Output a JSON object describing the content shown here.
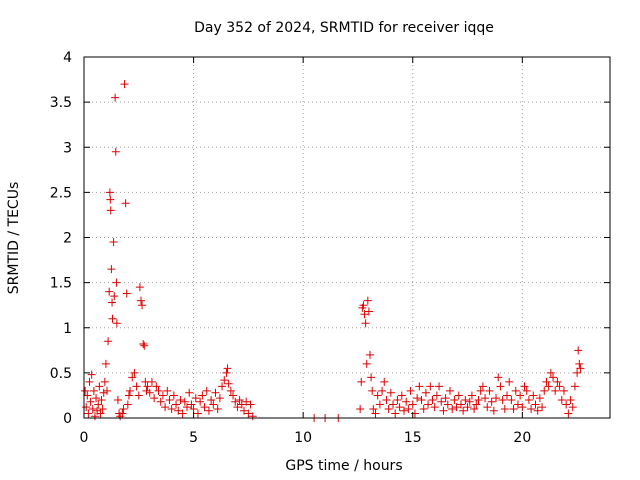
{
  "chart_data": {
    "type": "scatter",
    "title": "Day 352 of 2024, SRMTID for receiver iqqe",
    "xlabel": "GPS time / hours",
    "ylabel": "SRMTID / TECUs",
    "xlim": [
      0,
      24
    ],
    "ylim": [
      0,
      4
    ],
    "x_ticks": [
      0,
      5,
      10,
      15,
      20
    ],
    "x_tick_labels": [
      "0",
      "5",
      "10",
      "15",
      "20"
    ],
    "y_ticks": [
      0,
      0.5,
      1,
      1.5,
      2,
      2.5,
      3,
      3.5,
      4
    ],
    "y_tick_labels": [
      "0",
      "0.5",
      "1",
      "1.5",
      "2",
      "2.5",
      "3",
      "3.5",
      "4"
    ],
    "grid": true,
    "marker": "+",
    "marker_color": "#e00000",
    "series": [
      {
        "name": "SRMTID",
        "points": [
          [
            0.05,
            0.3
          ],
          [
            0.1,
            0.12
          ],
          [
            0.15,
            0.25
          ],
          [
            0.2,
            0.05
          ],
          [
            0.25,
            0.4
          ],
          [
            0.3,
            0.18
          ],
          [
            0.35,
            0.48
          ],
          [
            0.4,
            0.1
          ],
          [
            0.45,
            0.3
          ],
          [
            0.5,
            0.02
          ],
          [
            0.55,
            0.22
          ],
          [
            0.6,
            0.08
          ],
          [
            0.65,
            0.15
          ],
          [
            0.7,
            0.35
          ],
          [
            0.75,
            0.05
          ],
          [
            0.8,
            0.2
          ],
          [
            0.85,
            0.1
          ],
          [
            0.9,
            0.28
          ],
          [
            0.95,
            0.4
          ],
          [
            1.0,
            0.6
          ],
          [
            1.05,
            0.3
          ],
          [
            1.1,
            0.85
          ],
          [
            1.15,
            1.4
          ],
          [
            1.18,
            2.5
          ],
          [
            1.2,
            2.42
          ],
          [
            1.22,
            2.3
          ],
          [
            1.25,
            1.65
          ],
          [
            1.28,
            1.28
          ],
          [
            1.3,
            1.1
          ],
          [
            1.35,
            1.95
          ],
          [
            1.38,
            1.35
          ],
          [
            1.42,
            3.55
          ],
          [
            1.45,
            2.95
          ],
          [
            1.48,
            1.5
          ],
          [
            1.5,
            1.05
          ],
          [
            1.55,
            0.2
          ],
          [
            1.6,
            0.05
          ],
          [
            1.65,
            0.02
          ],
          [
            1.75,
            0.05
          ],
          [
            1.8,
            0.1
          ],
          [
            1.85,
            3.7
          ],
          [
            1.9,
            2.38
          ],
          [
            1.95,
            1.38
          ],
          [
            2.0,
            0.15
          ],
          [
            2.05,
            0.25
          ],
          [
            2.1,
            0.3
          ],
          [
            2.2,
            0.45
          ],
          [
            2.3,
            0.5
          ],
          [
            2.4,
            0.35
          ],
          [
            2.5,
            0.25
          ],
          [
            2.55,
            1.45
          ],
          [
            2.6,
            1.3
          ],
          [
            2.65,
            1.25
          ],
          [
            2.7,
            0.82
          ],
          [
            2.75,
            0.8
          ],
          [
            2.8,
            0.4
          ],
          [
            2.85,
            0.3
          ],
          [
            2.9,
            0.35
          ],
          [
            3.0,
            0.28
          ],
          [
            3.1,
            0.4
          ],
          [
            3.2,
            0.22
          ],
          [
            3.3,
            0.35
          ],
          [
            3.4,
            0.3
          ],
          [
            3.5,
            0.18
          ],
          [
            3.6,
            0.25
          ],
          [
            3.7,
            0.12
          ],
          [
            3.8,
            0.3
          ],
          [
            3.9,
            0.2
          ],
          [
            4.0,
            0.1
          ],
          [
            4.1,
            0.25
          ],
          [
            4.2,
            0.15
          ],
          [
            4.3,
            0.08
          ],
          [
            4.4,
            0.2
          ],
          [
            4.5,
            0.05
          ],
          [
            4.6,
            0.18
          ],
          [
            4.7,
            0.12
          ],
          [
            4.8,
            0.28
          ],
          [
            4.9,
            0.15
          ],
          [
            5.0,
            0.1
          ],
          [
            5.1,
            0.22
          ],
          [
            5.2,
            0.05
          ],
          [
            5.3,
            0.18
          ],
          [
            5.4,
            0.25
          ],
          [
            5.5,
            0.12
          ],
          [
            5.6,
            0.3
          ],
          [
            5.7,
            0.08
          ],
          [
            5.8,
            0.2
          ],
          [
            5.9,
            0.15
          ],
          [
            6.0,
            0.28
          ],
          [
            6.1,
            0.1
          ],
          [
            6.2,
            0.22
          ],
          [
            6.3,
            0.35
          ],
          [
            6.4,
            0.42
          ],
          [
            6.5,
            0.5
          ],
          [
            6.55,
            0.55
          ],
          [
            6.6,
            0.38
          ],
          [
            6.7,
            0.3
          ],
          [
            6.8,
            0.25
          ],
          [
            6.9,
            0.18
          ],
          [
            7.0,
            0.12
          ],
          [
            7.1,
            0.2
          ],
          [
            7.2,
            0.15
          ],
          [
            7.3,
            0.08
          ],
          [
            7.4,
            0.18
          ],
          [
            7.5,
            0.05
          ],
          [
            7.6,
            0.15
          ],
          [
            7.7,
            0.02
          ],
          [
            10.5,
            0.0
          ],
          [
            11.0,
            0.0
          ],
          [
            11.6,
            0.0
          ],
          [
            12.6,
            0.1
          ],
          [
            12.65,
            0.4
          ],
          [
            12.7,
            1.22
          ],
          [
            12.75,
            1.25
          ],
          [
            12.8,
            1.15
          ],
          [
            12.85,
            1.05
          ],
          [
            12.9,
            0.6
          ],
          [
            12.95,
            1.3
          ],
          [
            13.0,
            1.18
          ],
          [
            13.05,
            0.7
          ],
          [
            13.1,
            0.45
          ],
          [
            13.15,
            0.3
          ],
          [
            13.2,
            0.1
          ],
          [
            13.3,
            0.05
          ],
          [
            13.4,
            0.25
          ],
          [
            13.5,
            0.15
          ],
          [
            13.6,
            0.3
          ],
          [
            13.7,
            0.4
          ],
          [
            13.8,
            0.2
          ],
          [
            13.9,
            0.1
          ],
          [
            14.0,
            0.28
          ],
          [
            14.1,
            0.15
          ],
          [
            14.2,
            0.05
          ],
          [
            14.3,
            0.2
          ],
          [
            14.4,
            0.12
          ],
          [
            14.5,
            0.25
          ],
          [
            14.6,
            0.08
          ],
          [
            14.7,
            0.18
          ],
          [
            14.8,
            0.1
          ],
          [
            14.9,
            0.3
          ],
          [
            15.0,
            0.15
          ],
          [
            15.1,
            0.05
          ],
          [
            15.2,
            0.22
          ],
          [
            15.3,
            0.35
          ],
          [
            15.4,
            0.2
          ],
          [
            15.5,
            0.1
          ],
          [
            15.6,
            0.28
          ],
          [
            15.7,
            0.15
          ],
          [
            15.8,
            0.35
          ],
          [
            15.9,
            0.2
          ],
          [
            16.0,
            0.12
          ],
          [
            16.1,
            0.25
          ],
          [
            16.2,
            0.35
          ],
          [
            16.3,
            0.18
          ],
          [
            16.4,
            0.08
          ],
          [
            16.5,
            0.22
          ],
          [
            16.6,
            0.15
          ],
          [
            16.7,
            0.3
          ],
          [
            16.8,
            0.1
          ],
          [
            16.9,
            0.2
          ],
          [
            17.0,
            0.12
          ],
          [
            17.1,
            0.25
          ],
          [
            17.2,
            0.15
          ],
          [
            17.3,
            0.08
          ],
          [
            17.4,
            0.2
          ],
          [
            17.5,
            0.12
          ],
          [
            17.6,
            0.18
          ],
          [
            17.7,
            0.25
          ],
          [
            17.8,
            0.1
          ],
          [
            17.9,
            0.15
          ],
          [
            18.0,
            0.2
          ],
          [
            18.1,
            0.3
          ],
          [
            18.2,
            0.35
          ],
          [
            18.3,
            0.22
          ],
          [
            18.4,
            0.12
          ],
          [
            18.5,
            0.3
          ],
          [
            18.6,
            0.18
          ],
          [
            18.7,
            0.08
          ],
          [
            18.8,
            0.22
          ],
          [
            18.9,
            0.45
          ],
          [
            19.0,
            0.35
          ],
          [
            19.1,
            0.2
          ],
          [
            19.2,
            0.1
          ],
          [
            19.3,
            0.25
          ],
          [
            19.4,
            0.4
          ],
          [
            19.5,
            0.2
          ],
          [
            19.6,
            0.1
          ],
          [
            19.7,
            0.3
          ],
          [
            19.8,
            0.15
          ],
          [
            19.9,
            0.25
          ],
          [
            20.0,
            0.12
          ],
          [
            20.1,
            0.35
          ],
          [
            20.2,
            0.3
          ],
          [
            20.3,
            0.2
          ],
          [
            20.4,
            0.1
          ],
          [
            20.5,
            0.25
          ],
          [
            20.6,
            0.15
          ],
          [
            20.7,
            0.08
          ],
          [
            20.8,
            0.22
          ],
          [
            20.9,
            0.12
          ],
          [
            21.0,
            0.3
          ],
          [
            21.1,
            0.4
          ],
          [
            21.2,
            0.35
          ],
          [
            21.3,
            0.5
          ],
          [
            21.4,
            0.45
          ],
          [
            21.5,
            0.3
          ],
          [
            21.6,
            0.4
          ],
          [
            21.7,
            0.35
          ],
          [
            21.8,
            0.2
          ],
          [
            21.9,
            0.3
          ],
          [
            22.0,
            0.15
          ],
          [
            22.1,
            0.05
          ],
          [
            22.2,
            0.2
          ],
          [
            22.3,
            0.12
          ],
          [
            22.4,
            0.35
          ],
          [
            22.5,
            0.5
          ],
          [
            22.55,
            0.75
          ],
          [
            22.6,
            0.6
          ],
          [
            22.65,
            0.55
          ]
        ]
      }
    ]
  }
}
